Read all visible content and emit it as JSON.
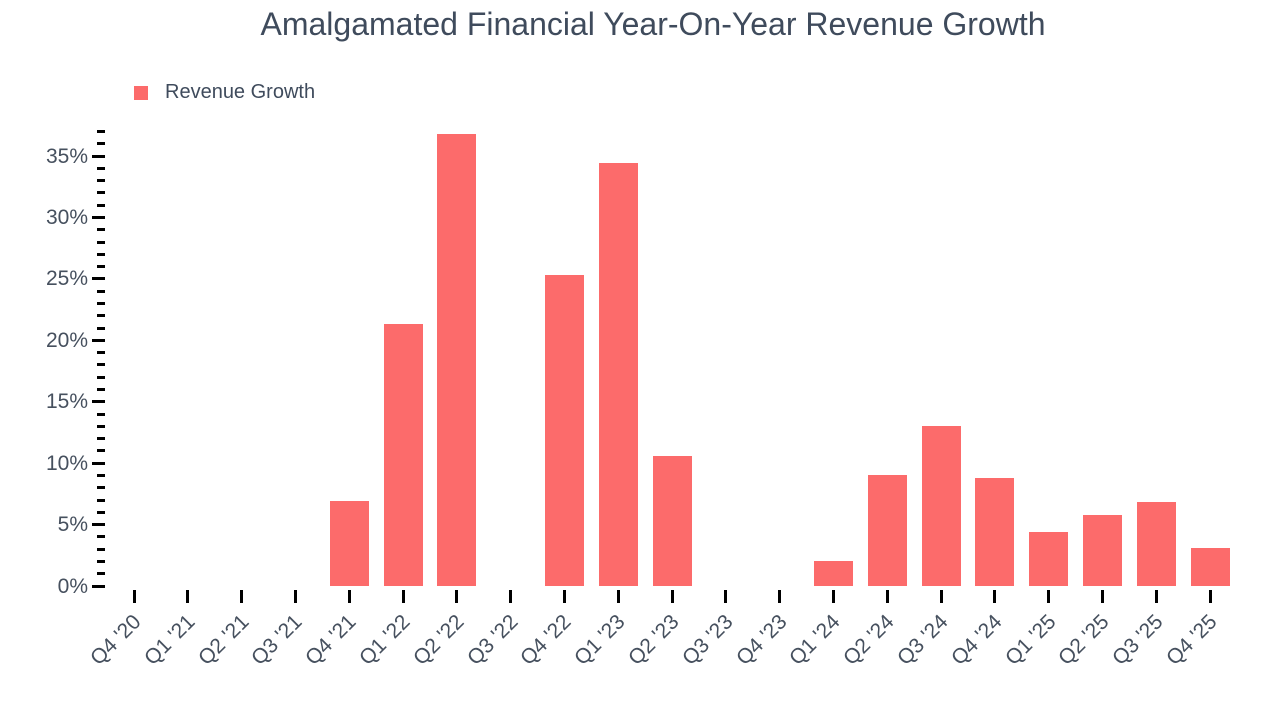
{
  "title": "Amalgamated Financial Year-On-Year Revenue Growth",
  "legend": {
    "label": "Revenue Growth"
  },
  "colors": {
    "bar": "#fc6b6b",
    "title_text": "#3f4b5c",
    "axis_text": "#46505e",
    "tick": "#000000",
    "background": "#ffffff"
  },
  "chart_data": {
    "type": "bar",
    "title": "Amalgamated Financial Year-On-Year Revenue Growth",
    "series_name": "Revenue Growth",
    "unit": "%",
    "categories": [
      "Q4 '20",
      "Q1 '21",
      "Q2 '21",
      "Q3 '21",
      "Q4 '21",
      "Q1 '22",
      "Q2 '22",
      "Q3 '22",
      "Q4 '22",
      "Q1 '23",
      "Q2 '23",
      "Q3 '23",
      "Q4 '23",
      "Q1 '24",
      "Q2 '24",
      "Q3 '24",
      "Q4 '24",
      "Q1 '25",
      "Q2 '25",
      "Q3 '25",
      "Q4 '25"
    ],
    "values": [
      null,
      null,
      null,
      null,
      6.9,
      21.3,
      36.8,
      null,
      25.3,
      34.4,
      10.6,
      null,
      null,
      2.0,
      9.0,
      13.0,
      8.8,
      4.4,
      5.8,
      6.8,
      3.1
    ],
    "xlabel": "",
    "ylabel": "",
    "y_axis": {
      "min": 0,
      "max": 37,
      "major_step": 5,
      "minor_step": 1,
      "major_tick_labels": [
        "0%",
        "5%",
        "10%",
        "15%",
        "20%",
        "25%",
        "30%",
        "35%"
      ]
    },
    "grid": false,
    "legend_position": "top-left",
    "x_labels_rotation_deg": -45
  }
}
